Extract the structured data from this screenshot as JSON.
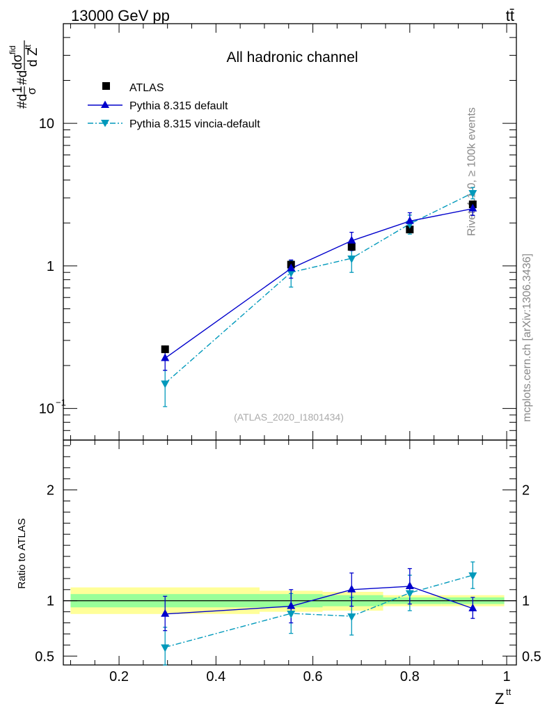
{
  "header": {
    "energy_label": "13000 GeV pp",
    "process_label": "tt̄"
  },
  "side_text": {
    "rivet": "Rivet 4.1.0, ≥ 100k events",
    "mcplots": "mcplots.cern.ch [arXiv:1306.3436]"
  },
  "colors": {
    "data": "#000000",
    "default": "#0000cc",
    "vincia": "#0099bb",
    "band_inner": "#99ff99",
    "band_outer": "#ffff99"
  },
  "chart_data": [
    {
      "type": "scatter",
      "panel": "main",
      "title": "All hadronic channel",
      "analysis_label": "(ATLAS_2020_I1801434)",
      "yscale": "log",
      "ylim": [
        0.06,
        50
      ],
      "xlim": [
        0.085,
        1.02
      ],
      "xlabel": "Z^{tt}",
      "ylabel": "#d1/σ#d dσ^{fid} / d Z^{tt}",
      "ylabel_parts": {
        "prefix": "#d",
        "one": "1",
        "sigma": "σ",
        "hashd": "#d",
        "dsigma": "dσ",
        "fid": "fid",
        "dz": "d Z",
        "tt": "tt"
      },
      "yticks": [
        {
          "value": 0.1,
          "base": "10",
          "exp": "−1"
        },
        {
          "value": 1,
          "base": "1",
          "exp": ""
        },
        {
          "value": 10,
          "base": "10",
          "exp": ""
        }
      ],
      "legend_position": "top-left",
      "series": [
        {
          "name": "ATLAS",
          "marker": "square",
          "x": [
            0.295,
            0.555,
            0.68,
            0.8,
            0.93
          ],
          "y": [
            0.26,
            1.02,
            1.36,
            1.8,
            2.7
          ],
          "err": [
            0.01,
            0.04,
            0.05,
            0.06,
            0.09
          ]
        },
        {
          "name": "Pythia 8.315 default",
          "marker": "triangle-up",
          "line": "solid",
          "x": [
            0.295,
            0.555,
            0.68,
            0.8,
            0.93
          ],
          "y": [
            0.225,
            0.96,
            1.5,
            2.06,
            2.52
          ],
          "err_lo": [
            0.04,
            0.14,
            0.22,
            0.3,
            0.26
          ],
          "err_hi": [
            0.04,
            0.14,
            0.22,
            0.3,
            0.26
          ]
        },
        {
          "name": "Pythia 8.315 vincia-default",
          "marker": "triangle-down",
          "line": "dash-dot",
          "x": [
            0.295,
            0.555,
            0.68,
            0.8,
            0.93
          ],
          "y": [
            0.15,
            0.9,
            1.13,
            1.97,
            3.25
          ],
          "err_lo": [
            0.047,
            0.19,
            0.23,
            0.3,
            0.3
          ],
          "err_hi": [
            0.035,
            0.19,
            0.23,
            0.3,
            0.3
          ]
        }
      ]
    },
    {
      "type": "scatter",
      "panel": "ratio",
      "ylabel": "Ratio to ATLAS",
      "xlabel": "Z^{tt}",
      "xlabel_parts": {
        "base": "Z",
        "sup": "tt"
      },
      "ylim": [
        0.42,
        2.45
      ],
      "xlim": [
        0.085,
        1.02
      ],
      "yticks": [
        0.5,
        1,
        2
      ],
      "xticks": [
        0.2,
        0.4,
        0.6,
        0.8,
        1
      ],
      "band_bins": [
        {
          "x0": 0.1,
          "x1": 0.49,
          "inner": [
            0.94,
            1.06
          ],
          "outer": [
            0.88,
            1.12
          ]
        },
        {
          "x0": 0.49,
          "x1": 0.62,
          "inner": [
            0.94,
            1.06
          ],
          "outer": [
            0.9,
            1.09
          ]
        },
        {
          "x0": 0.62,
          "x1": 0.745,
          "inner": [
            0.95,
            1.05
          ],
          "outer": [
            0.91,
            1.08
          ]
        },
        {
          "x0": 0.745,
          "x1": 0.865,
          "inner": [
            0.97,
            1.03
          ],
          "outer": [
            0.95,
            1.05
          ]
        },
        {
          "x0": 0.865,
          "x1": 0.995,
          "inner": [
            0.97,
            1.03
          ],
          "outer": [
            0.95,
            1.05
          ]
        }
      ],
      "series": [
        {
          "name": "Pythia 8.315 default",
          "x": [
            0.295,
            0.555,
            0.68,
            0.8,
            0.93
          ],
          "y": [
            0.88,
            0.95,
            1.1,
            1.13,
            0.93
          ],
          "err_lo": [
            0.15,
            0.15,
            0.15,
            0.16,
            0.09
          ],
          "err_hi": [
            0.16,
            0.15,
            0.15,
            0.16,
            0.1
          ]
        },
        {
          "name": "Pythia 8.315 vincia-default",
          "x": [
            0.295,
            0.555,
            0.68,
            0.8,
            0.93
          ],
          "y": [
            0.58,
            0.885,
            0.86,
            1.07,
            1.23
          ],
          "err_lo": [
            0.18,
            0.18,
            0.17,
            0.16,
            0.12
          ],
          "err_hi": [
            0.18,
            0.18,
            0.17,
            0.16,
            0.12
          ]
        }
      ]
    }
  ]
}
